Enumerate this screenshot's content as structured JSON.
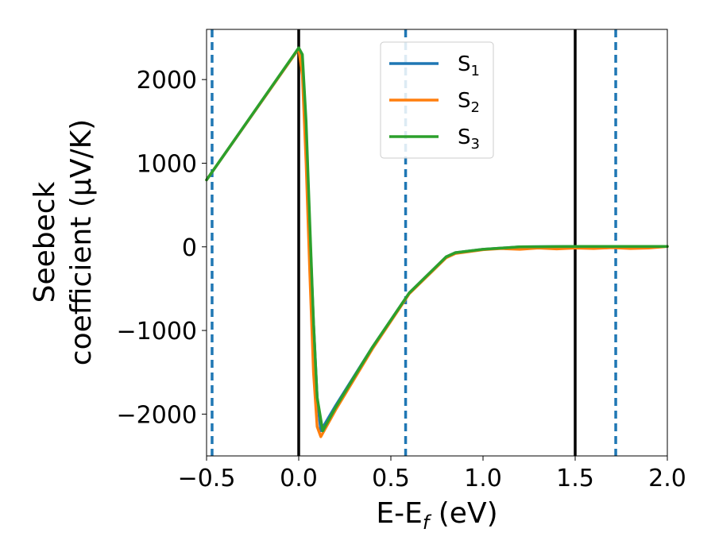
{
  "chart_data": {
    "type": "line",
    "xlabel": "E-E",
    "xlabel_sub": "f",
    "xlabel_unit": " (eV)",
    "ylabel_line1": "Seebeck",
    "ylabel_line2": "coefficient  (μV/K)",
    "xlim": [
      -0.5,
      2.0
    ],
    "ylim": [
      -2500,
      2600
    ],
    "xticks": [
      -0.5,
      0.0,
      0.5,
      1.0,
      1.5,
      2.0
    ],
    "xtick_labels": [
      "−0.5",
      "0.0",
      "0.5",
      "1.0",
      "1.5",
      "2.0"
    ],
    "yticks": [
      -2000,
      -1000,
      0,
      1000,
      2000
    ],
    "ytick_labels": [
      "−2000",
      "−1000",
      "0",
      "1000",
      "2000"
    ],
    "grid": false,
    "legend_position": "top-center",
    "vlines_solid": [
      0.0,
      1.5
    ],
    "vlines_dashed": [
      -0.47,
      0.58,
      1.72
    ],
    "vline_solid_color": "#000000",
    "vline_dashed_color": "#1f77b4",
    "series": [
      {
        "name": "S",
        "sub": "1",
        "color": "#1f77b4",
        "x": [
          -0.5,
          0.0,
          0.02,
          0.04,
          0.06,
          0.08,
          0.1,
          0.12,
          0.2,
          0.4,
          0.6,
          0.8,
          0.85,
          1.0,
          1.2,
          1.5,
          1.8,
          2.0
        ],
        "y": [
          800,
          2370,
          2200,
          1300,
          200,
          -900,
          -1800,
          -2200,
          -1900,
          -1200,
          -550,
          -120,
          -70,
          -30,
          0,
          5,
          5,
          5
        ]
      },
      {
        "name": "S",
        "sub": "2",
        "color": "#ff7f0e",
        "x": [
          -0.5,
          0.0,
          0.02,
          0.04,
          0.06,
          0.08,
          0.1,
          0.12,
          0.2,
          0.4,
          0.6,
          0.8,
          0.85,
          1.0,
          1.1,
          1.2,
          1.3,
          1.4,
          1.5,
          1.6,
          1.7,
          1.8,
          1.9,
          2.0
        ],
        "y": [
          800,
          2370,
          2050,
          1000,
          -300,
          -1500,
          -2150,
          -2270,
          -1950,
          -1220,
          -560,
          -130,
          -80,
          -35,
          -20,
          -30,
          -15,
          -25,
          -15,
          -20,
          -10,
          -20,
          -15,
          5
        ]
      },
      {
        "name": "S",
        "sub": "3",
        "color": "#2ca02c",
        "x": [
          -0.5,
          0.0,
          0.02,
          0.04,
          0.06,
          0.08,
          0.1,
          0.13,
          0.2,
          0.4,
          0.6,
          0.8,
          0.85,
          1.0,
          1.2,
          1.5,
          1.8,
          2.0
        ],
        "y": [
          800,
          2380,
          2300,
          1500,
          300,
          -900,
          -1800,
          -2200,
          -1920,
          -1200,
          -550,
          -120,
          -70,
          -30,
          0,
          5,
          5,
          5
        ]
      }
    ]
  }
}
